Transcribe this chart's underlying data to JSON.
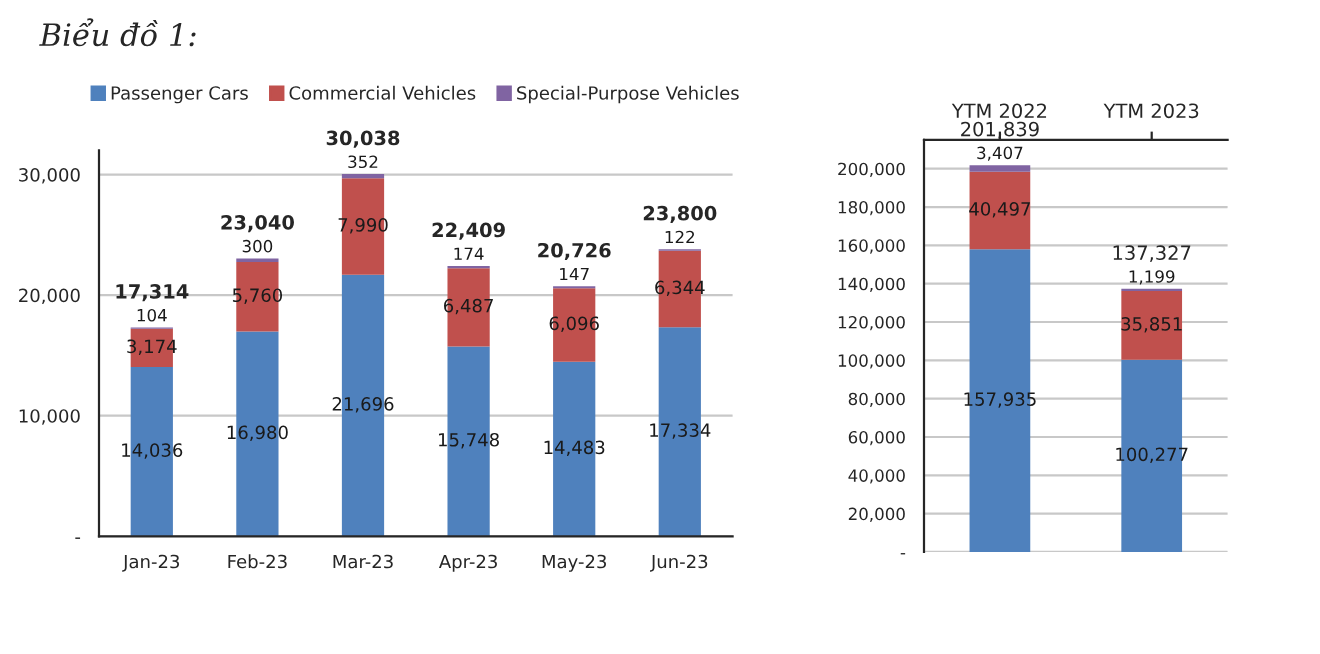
{
  "chart_data": [
    {
      "type": "bar",
      "title": "Biểu đồ 1:",
      "stacked": true,
      "categories": [
        "Jan-23",
        "Feb-23",
        "Mar-23",
        "Apr-23",
        "May-23",
        "Jun-23"
      ],
      "series": [
        {
          "name": "Passenger Cars",
          "color": "#4f81bd",
          "values": [
            14036,
            16980,
            21696,
            15748,
            14483,
            17334
          ],
          "value_labels": [
            "14,036",
            "16,980",
            "21,696",
            "15,748",
            "14,483",
            "17,334"
          ]
        },
        {
          "name": "Commercial Vehicles",
          "color": "#c0504d",
          "values": [
            3174,
            5760,
            7990,
            6487,
            6096,
            6344
          ],
          "value_labels": [
            "3,174",
            "5,760",
            "7,990",
            "6,487",
            "6,096",
            "6,344"
          ]
        },
        {
          "name": "Special-Purpose Vehicles",
          "color": "#8064a2",
          "values": [
            104,
            300,
            352,
            174,
            147,
            122
          ],
          "value_labels": [
            "104",
            "300",
            "352",
            "174",
            "147",
            "122"
          ]
        }
      ],
      "totals": [
        "17,314",
        "23,040",
        "30,038",
        "22,409",
        "20,726",
        "23,800"
      ],
      "ylim": [
        0,
        32000
      ],
      "yticks": [
        {
          "value": 0,
          "label": "-"
        },
        {
          "value": 10000,
          "label": "10,000"
        },
        {
          "value": 20000,
          "label": "20,000"
        },
        {
          "value": 30000,
          "label": "30,000"
        }
      ],
      "grid": "y",
      "legend": "top"
    },
    {
      "type": "bar",
      "stacked": true,
      "categories": [
        "YTM 2022",
        "YTM 2023"
      ],
      "series": [
        {
          "color": "#4f81bd",
          "values": [
            157935,
            100277
          ],
          "value_labels": [
            "157,935",
            "100,277"
          ]
        },
        {
          "color": "#c0504d",
          "values": [
            40497,
            35851
          ],
          "value_labels": [
            "40,497",
            "35,851"
          ]
        },
        {
          "color": "#8064a2",
          "values": [
            3407,
            1199
          ],
          "value_labels": [
            "3,407",
            "1,199"
          ]
        }
      ],
      "totals": [
        "201,839",
        "137,327"
      ],
      "ylim": [
        0,
        215000
      ],
      "yticks": [
        {
          "value": 0,
          "label": "-"
        },
        {
          "value": 20000,
          "label": "20,000"
        },
        {
          "value": 40000,
          "label": "40,000"
        },
        {
          "value": 60000,
          "label": "60,000"
        },
        {
          "value": 80000,
          "label": "80,000"
        },
        {
          "value": 100000,
          "label": "100,000"
        },
        {
          "value": 120000,
          "label": "120,000"
        },
        {
          "value": 140000,
          "label": "140,000"
        },
        {
          "value": 160000,
          "label": "160,000"
        },
        {
          "value": 180000,
          "label": "180,000"
        },
        {
          "value": 200000,
          "label": "200,000"
        }
      ],
      "grid": "y"
    }
  ]
}
